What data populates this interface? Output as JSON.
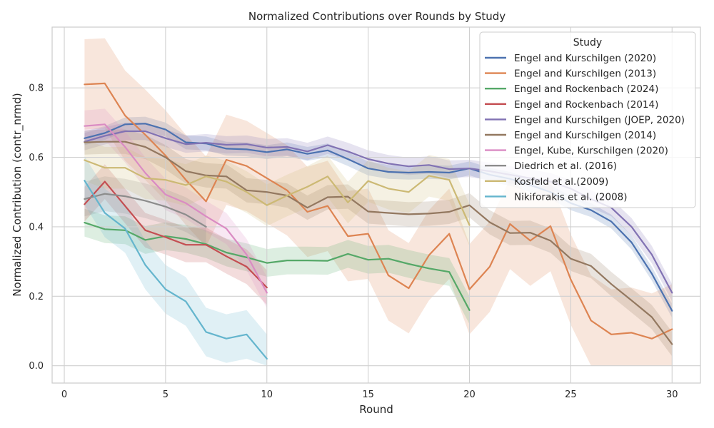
{
  "chart_data": {
    "type": "line",
    "title": "Normalized Contributions over Rounds by Study",
    "xlabel": "Round",
    "ylabel": "Normalized Contribution (contr_nrmd)",
    "xlim": [
      -0.6,
      31.4
    ],
    "ylim": [
      -0.05,
      0.975
    ],
    "xticks": [
      0,
      5,
      10,
      15,
      20,
      25,
      30
    ],
    "yticks": [
      0.0,
      0.2,
      0.4,
      0.6,
      0.8
    ],
    "xtick_labels": [
      "0",
      "5",
      "10",
      "15",
      "20",
      "25",
      "30"
    ],
    "ytick_labels": [
      "0.0",
      "0.2",
      "0.4",
      "0.6",
      "0.8"
    ],
    "grid": true,
    "legend": {
      "title": "Study",
      "position": "top-right"
    },
    "series": [
      {
        "name": "Engel and Kurschilgen (2020)",
        "color": "#4c72b0",
        "x": [
          1,
          2,
          3,
          4,
          5,
          6,
          7,
          8,
          9,
          10,
          11,
          12,
          13,
          14,
          15,
          16,
          17,
          18,
          19,
          20,
          21,
          22,
          23,
          24,
          25,
          26,
          27,
          28,
          29,
          30
        ],
        "values": [
          0.655,
          0.67,
          0.695,
          0.697,
          0.68,
          0.643,
          0.64,
          0.625,
          0.623,
          0.615,
          0.623,
          0.61,
          0.62,
          0.595,
          0.568,
          0.558,
          0.556,
          0.558,
          0.556,
          0.568,
          0.55,
          0.538,
          0.52,
          0.5,
          0.468,
          0.448,
          0.415,
          0.355,
          0.265,
          0.158
        ],
        "ci": 0.02
      },
      {
        "name": "Engel and Kurschilgen (2013)",
        "color": "#dd8452",
        "x": [
          1,
          2,
          3,
          4,
          5,
          6,
          7,
          8,
          9,
          10,
          11,
          12,
          13,
          14,
          15,
          16,
          17,
          18,
          19,
          20,
          21,
          22,
          23,
          24,
          25,
          26,
          27,
          28,
          29,
          30
        ],
        "values": [
          0.81,
          0.813,
          0.72,
          0.665,
          0.605,
          0.535,
          0.473,
          0.593,
          0.575,
          0.54,
          0.505,
          0.443,
          0.46,
          0.373,
          0.38,
          0.26,
          0.223,
          0.318,
          0.38,
          0.22,
          0.285,
          0.408,
          0.36,
          0.402,
          0.248,
          0.13,
          0.09,
          0.095,
          0.078,
          0.105
        ],
        "ci": 0.13
      },
      {
        "name": "Engel and Rockenbach (2024)",
        "color": "#55a868",
        "x": [
          1,
          2,
          3,
          4,
          5,
          6,
          7,
          8,
          9,
          10,
          11,
          12,
          13,
          14,
          15,
          16,
          17,
          18,
          19,
          20
        ],
        "values": [
          0.412,
          0.393,
          0.39,
          0.362,
          0.373,
          0.365,
          0.35,
          0.326,
          0.312,
          0.296,
          0.303,
          0.303,
          0.302,
          0.322,
          0.305,
          0.308,
          0.293,
          0.28,
          0.27,
          0.16
        ],
        "ci": 0.04
      },
      {
        "name": "Engel and Rockenbach (2014)",
        "color": "#c44e52",
        "x": [
          1,
          2,
          3,
          4,
          5,
          6,
          7,
          8,
          9,
          10
        ],
        "values": [
          0.465,
          0.53,
          0.46,
          0.39,
          0.37,
          0.348,
          0.348,
          0.315,
          0.285,
          0.225
        ],
        "ci": 0.05
      },
      {
        "name": "Engel and Kurschilgen (JOEP, 2020)",
        "color": "#8172b3",
        "x": [
          1,
          2,
          3,
          4,
          5,
          6,
          7,
          8,
          9,
          10,
          11,
          12,
          13,
          14,
          15,
          16,
          17,
          18,
          19,
          20,
          21,
          22,
          23,
          24,
          25,
          26,
          27,
          28,
          29,
          30
        ],
        "values": [
          0.645,
          0.662,
          0.675,
          0.675,
          0.655,
          0.638,
          0.642,
          0.636,
          0.638,
          0.628,
          0.63,
          0.617,
          0.635,
          0.617,
          0.595,
          0.582,
          0.574,
          0.578,
          0.566,
          0.568,
          0.56,
          0.55,
          0.54,
          0.53,
          0.51,
          0.48,
          0.455,
          0.4,
          0.32,
          0.21
        ],
        "ci": 0.025
      },
      {
        "name": "Engel and Kurschilgen (2014)",
        "color": "#937860",
        "x": [
          1,
          2,
          3,
          4,
          5,
          6,
          7,
          8,
          9,
          10,
          11,
          12,
          13,
          14,
          15,
          16,
          17,
          18,
          19,
          20,
          21,
          22,
          23,
          24,
          25,
          26,
          27,
          28,
          29,
          30
        ],
        "values": [
          0.643,
          0.645,
          0.645,
          0.63,
          0.6,
          0.56,
          0.548,
          0.545,
          0.505,
          0.5,
          0.49,
          0.455,
          0.485,
          0.487,
          0.444,
          0.44,
          0.436,
          0.438,
          0.443,
          0.462,
          0.413,
          0.382,
          0.383,
          0.36,
          0.308,
          0.287,
          0.235,
          0.188,
          0.14,
          0.062
        ],
        "ci": 0.035
      },
      {
        "name": "Engel, Kube, Kurschilgen (2020)",
        "color": "#da8bc3",
        "x": [
          1,
          2,
          3,
          4,
          5,
          6,
          7,
          8,
          9,
          10
        ],
        "values": [
          0.69,
          0.695,
          0.63,
          0.555,
          0.493,
          0.468,
          0.43,
          0.395,
          0.32,
          0.21
        ],
        "ci": 0.045
      },
      {
        "name": "Diedrich et al. (2016)",
        "color": "#8c8c8c",
        "x": [
          1,
          2,
          3,
          4,
          5,
          6,
          7
        ],
        "values": [
          0.48,
          0.495,
          0.488,
          0.475,
          0.458,
          0.435,
          0.4
        ],
        "ci": 0.05
      },
      {
        "name": "Kosfeld et al.(2009)",
        "color": "#ccb974",
        "x": [
          1,
          2,
          3,
          4,
          5,
          6,
          7,
          8,
          9,
          10,
          11,
          12,
          13,
          14,
          15,
          16,
          17,
          18,
          19,
          20
        ],
        "values": [
          0.592,
          0.57,
          0.57,
          0.54,
          0.535,
          0.52,
          0.545,
          0.53,
          0.5,
          0.462,
          0.49,
          0.515,
          0.545,
          0.47,
          0.532,
          0.51,
          0.5,
          0.547,
          0.535,
          0.405
        ],
        "ci": 0.06
      },
      {
        "name": "Nikiforakis et al. (2008)",
        "color": "#64b5cd",
        "x": [
          1,
          2,
          3,
          4,
          5,
          6,
          7,
          8,
          9,
          10
        ],
        "values": [
          0.533,
          0.44,
          0.395,
          0.29,
          0.22,
          0.185,
          0.097,
          0.078,
          0.09,
          0.02
        ],
        "ci": 0.07
      }
    ]
  }
}
